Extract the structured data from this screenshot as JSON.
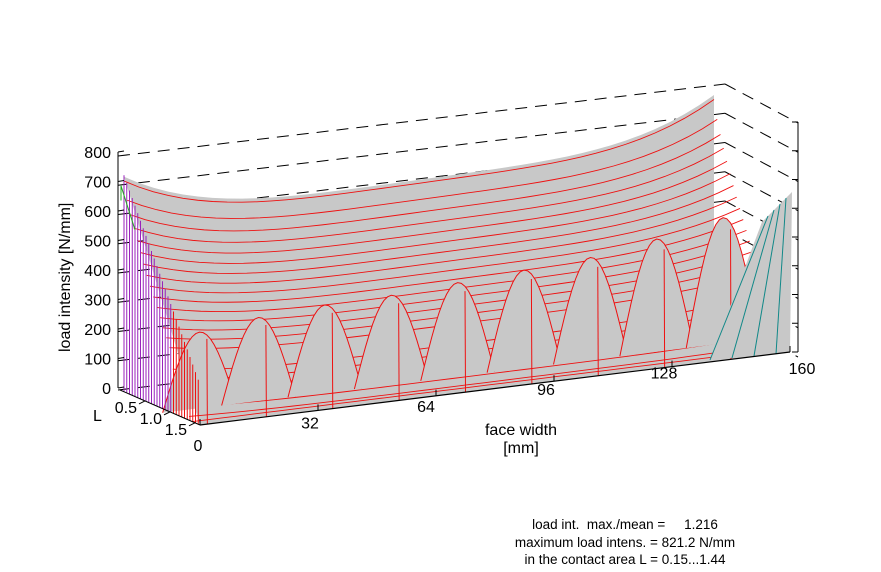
{
  "chart_data": {
    "type": "surface-3d",
    "ylabel": "load intensity  [N/mm]",
    "xlabel": "face width",
    "xunit": "[mm]",
    "depth_label": "L",
    "z_ticks": [
      "0",
      "100",
      "200",
      "300",
      "400",
      "500",
      "600",
      "700",
      "800"
    ],
    "x_ticks": [
      "0",
      "32",
      "64",
      "96",
      "128",
      "160"
    ],
    "depth_ticks": [
      "0.5",
      "1.0",
      "1.5"
    ],
    "zlim": [
      0,
      800
    ],
    "xlim": [
      0,
      160
    ],
    "depth_lim": [
      0,
      1.6
    ],
    "grid": true,
    "edge_profile_L0": {
      "x": [
        0,
        32,
        64,
        96,
        128,
        160
      ],
      "load": [
        740,
        630,
        600,
        620,
        660,
        745
      ]
    },
    "contact_line_peaks": [
      {
        "x": 8,
        "load": 260
      },
      {
        "x": 24,
        "load": 285
      },
      {
        "x": 42,
        "load": 300
      },
      {
        "x": 60,
        "load": 305
      },
      {
        "x": 78,
        "load": 320
      },
      {
        "x": 96,
        "load": 335
      },
      {
        "x": 114,
        "load": 350
      },
      {
        "x": 132,
        "load": 385
      },
      {
        "x": 150,
        "load": 430
      }
    ],
    "colors": {
      "surface_lines": "#ee1111",
      "left_flank": "#9922bb",
      "right_flank": "#118888",
      "green_edge": "#22aa22",
      "surface_fill": "#c8c8c8"
    }
  },
  "stats": {
    "line1": "load int.  max./mean =     1.216",
    "line2": "maximum load intens. = 821.2 N/mm",
    "line3": "in the contact area L = 0.15...1.44"
  }
}
